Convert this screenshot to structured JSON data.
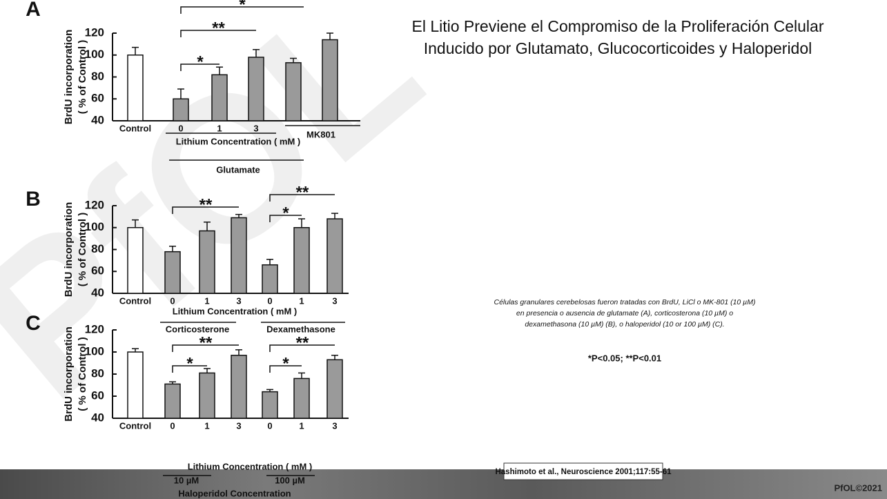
{
  "chart_data": [
    {
      "type": "bar",
      "panel": "A",
      "y_label": [
        "BrdU incorporation",
        "( % of Control )"
      ],
      "categories": [
        "Control",
        "0",
        "1",
        "3",
        null,
        null
      ],
      "values": [
        100,
        60,
        82,
        98,
        93,
        114
      ],
      "errors": [
        7,
        9,
        7,
        7,
        4,
        6
      ],
      "colors": [
        "#ffffff",
        "#9a9a9a",
        "#9a9a9a",
        "#9a9a9a",
        "#9a9a9a",
        "#9a9a9a"
      ],
      "ylim": [
        40,
        120
      ],
      "yticks": [
        40,
        60,
        80,
        100,
        120
      ],
      "group_labels": [
        "MK801",
        "Lithium Concentration ( mM )",
        "Glutamate"
      ],
      "significance": [
        "*",
        "**",
        "*"
      ]
    },
    {
      "type": "bar",
      "panel": "B",
      "y_label": [
        "BrdU incorporation",
        "( % of Control )"
      ],
      "categories": [
        "Control",
        "0",
        "1",
        "3",
        "0",
        "1",
        "3"
      ],
      "values": [
        100,
        78,
        97,
        109,
        66,
        100,
        108
      ],
      "errors": [
        7,
        5,
        8,
        3,
        5,
        8,
        5
      ],
      "colors": [
        "#ffffff",
        "#9a9a9a",
        "#9a9a9a",
        "#9a9a9a",
        "#9a9a9a",
        "#9a9a9a",
        "#9a9a9a"
      ],
      "ylim": [
        40,
        120
      ],
      "yticks": [
        40,
        60,
        80,
        100,
        120
      ],
      "group_labels": [
        "Lithium Concentration ( mM )",
        "Corticosterone",
        "Dexamethasone"
      ],
      "significance": [
        "**",
        "**",
        "*"
      ]
    },
    {
      "type": "bar",
      "panel": "C",
      "y_label": [
        "BrdU incorporation",
        "( % of Control )"
      ],
      "categories": [
        "Control",
        "0",
        "1",
        "3",
        "0",
        "1",
        "3"
      ],
      "values": [
        100,
        71,
        81,
        97,
        64,
        76,
        93
      ],
      "errors": [
        3,
        2,
        4,
        5,
        2,
        5,
        4
      ],
      "colors": [
        "#ffffff",
        "#9a9a9a",
        "#9a9a9a",
        "#9a9a9a",
        "#9a9a9a",
        "#9a9a9a",
        "#9a9a9a"
      ],
      "ylim": [
        40,
        120
      ],
      "yticks": [
        40,
        60,
        80,
        100,
        120
      ],
      "group_labels": [
        "Lithium Concentration ( mM )",
        "10 µM",
        "100 µM",
        "Haloperidol Concentration"
      ],
      "significance": [
        "**",
        "*",
        "**",
        "*"
      ]
    }
  ],
  "slide": {
    "title": [
      "El Litio Previene el Compromiso de la Proliferación Celular",
      "Inducido por Glutamato, Glucocorticoides y Haloperidol"
    ],
    "caption": [
      "Células granulares cerebelosas fueron tratadas con BrdU, LiCl o MK-801 (10 µM)",
      "en presencia o ausencia de glutamate (A), corticosterona (10 µM) o",
      "dexamethasona (10 µM) (B), o haloperidol (10 or 100 µM) (C)."
    ],
    "significance_note": "*P<0.05; **P<0.01",
    "citation": "Hashimoto et al., Neuroscience 2001;117:55-61",
    "copyright": "PfOL©2021",
    "watermark": "PfOL"
  }
}
